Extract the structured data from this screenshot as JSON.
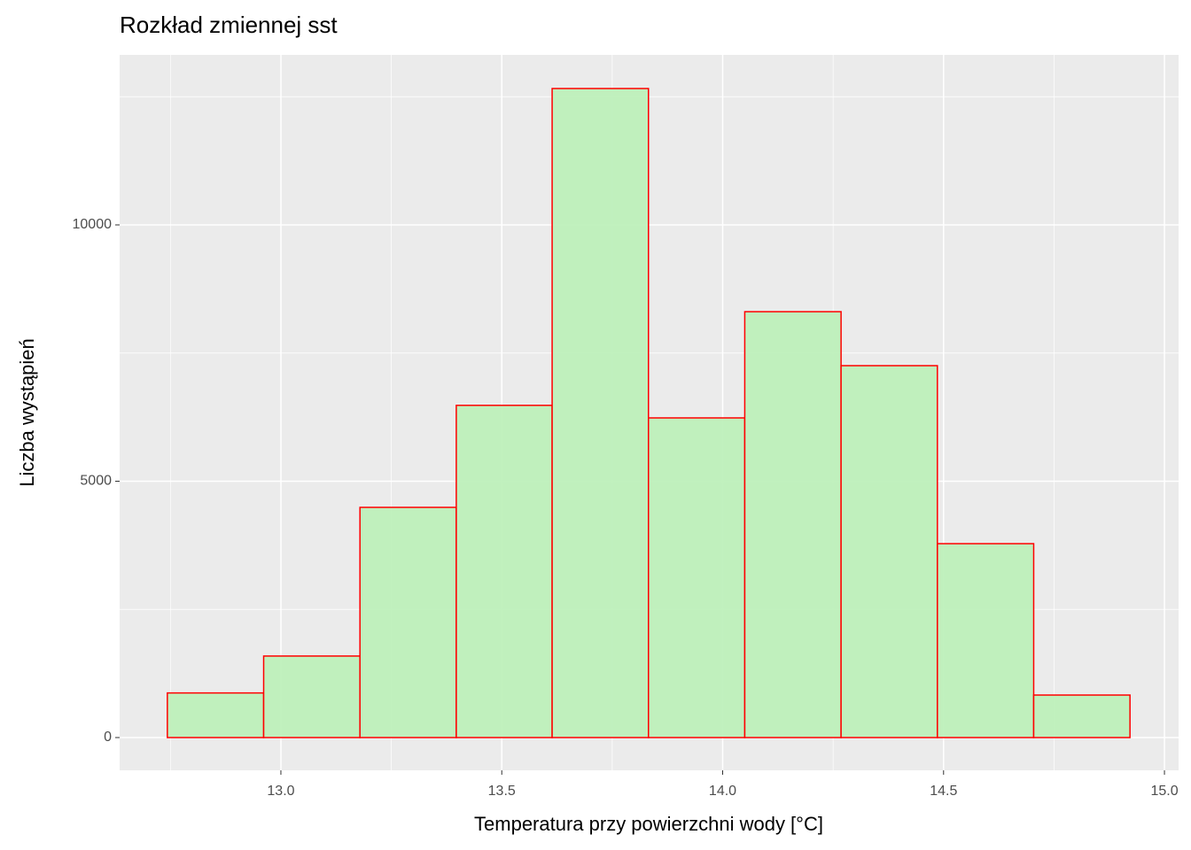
{
  "chart_data": {
    "type": "histogram",
    "title": "Rozkład zmiennej sst",
    "x_label": "Temperatura przy powierzchni wody [°C]",
    "y_label": "Liczba wystąpień",
    "bins": [
      12.743,
      12.961,
      13.179,
      13.397,
      13.614,
      13.832,
      14.05,
      14.268,
      14.486,
      14.704,
      14.922
    ],
    "values": [
      870,
      1590,
      4490,
      6480,
      12660,
      6235,
      8307,
      7254,
      3782,
      829
    ],
    "color": "#bef0bb",
    "edge_color": "#ff0000",
    "xlim": [
      12.635,
      15.032
    ],
    "ylim": [
      -639,
      13316
    ],
    "xticks": [
      {
        "value": 13,
        "label": "13.0"
      },
      13.5,
      {
        "value": 14,
        "label": "14.0"
      },
      14.5,
      {
        "value": 15,
        "label": "15.0"
      }
    ],
    "yticks": [
      0,
      5000,
      10000
    ],
    "grid": true
  }
}
